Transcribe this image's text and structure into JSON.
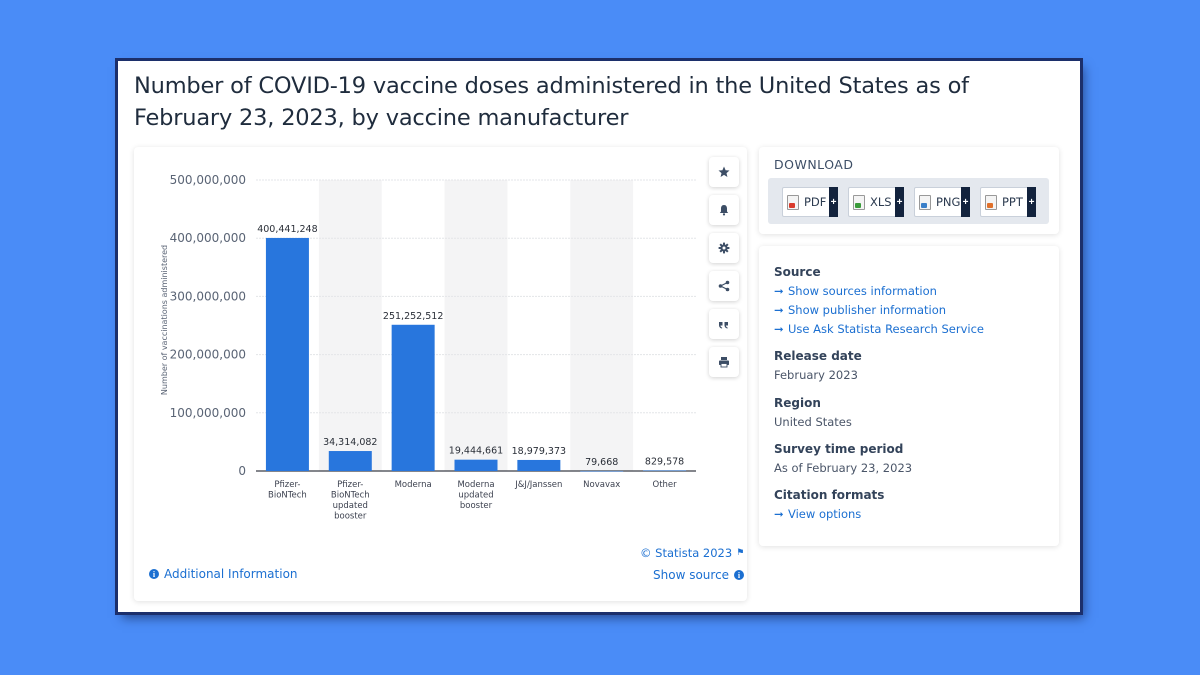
{
  "page_title": "Number of COVID-19 vaccine doses administered in the United States as of February 23, 2023, by vaccine manufacturer",
  "chart_data": {
    "type": "bar",
    "title": "Number of COVID-19 vaccine doses administered in the United States as of February 23, 2023, by vaccine manufacturer",
    "xlabel": "",
    "ylabel": "Number of vaccinations administered",
    "categories": [
      [
        "Pfizer-",
        "BioNTech"
      ],
      [
        "Pfizer-",
        "BioNTech",
        "updated",
        "booster"
      ],
      [
        "Moderna"
      ],
      [
        "Moderna",
        "updated",
        "booster"
      ],
      [
        "J&J/Janssen"
      ],
      [
        "Novavax"
      ],
      [
        "Other"
      ]
    ],
    "values": [
      400441248,
      34314082,
      251252512,
      19444661,
      18979373,
      79668,
      829578
    ],
    "value_labels": [
      "400,441,248",
      "34,314,082",
      "251,252,512",
      "19,444,661",
      "18,979,373",
      "79,668",
      "829,578"
    ],
    "ylim": [
      0,
      500000000
    ],
    "yticks": [
      0,
      100000000,
      200000000,
      300000000,
      400000000,
      500000000
    ],
    "ytick_labels": [
      "0",
      "100,000,000",
      "200,000,000",
      "300,000,000",
      "400,000,000",
      "500,000,000"
    ],
    "grid": true,
    "bar_color": "#2876dd"
  },
  "toolbar": {
    "items": [
      "star-icon",
      "bell-icon",
      "gear-icon",
      "share-icon",
      "quote-icon",
      "print-icon"
    ]
  },
  "download": {
    "title": "DOWNLOAD",
    "buttons": [
      {
        "label": "PDF",
        "plus": "+",
        "color": "#d93a2b"
      },
      {
        "label": "XLS",
        "plus": "+",
        "color": "#3a9b3a"
      },
      {
        "label": "PNG",
        "plus": "+",
        "color": "#3a7fc8"
      },
      {
        "label": "PPT",
        "plus": "+",
        "color": "#e0702a"
      }
    ]
  },
  "info": {
    "source_heading": "Source",
    "source_links": [
      "Show sources information",
      "Show publisher information",
      "Use Ask Statista Research Service"
    ],
    "release_heading": "Release date",
    "release_value": "February 2023",
    "region_heading": "Region",
    "region_value": "United States",
    "survey_heading": "Survey time period",
    "survey_value": "As of February 23, 2023",
    "citation_heading": "Citation formats",
    "citation_link": "View options"
  },
  "footer": {
    "copyright": "© Statista 2023",
    "additional_info": "Additional Information",
    "show_source": "Show source"
  },
  "colors": {
    "background": "#4a8cf7",
    "accent": "#1b6fd1",
    "bar": "#2876dd"
  }
}
